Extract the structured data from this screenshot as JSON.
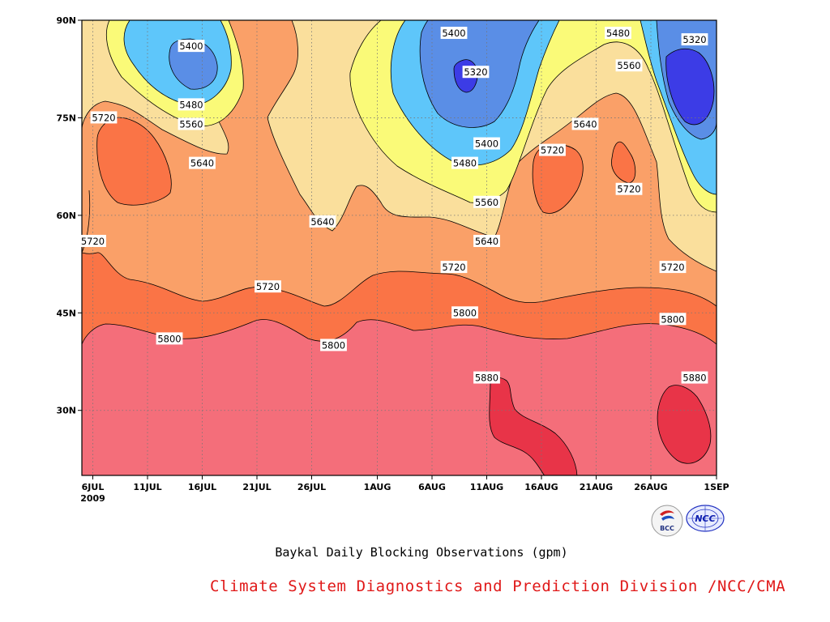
{
  "chart_data": {
    "type": "heatmap",
    "subtype": "filled-contour (time-latitude)",
    "title": "Baykal Daily Blocking Observations (gpm)",
    "xlabel": "",
    "ylabel": "",
    "x_ticks": [
      "6JUL",
      "11JUL",
      "16JUL",
      "21JUL",
      "26JUL",
      "1AUG",
      "6AUG",
      "11AUG",
      "16AUG",
      "21AUG",
      "26AUG",
      "1SEP"
    ],
    "x_year_label": "2009",
    "x_range": [
      "2009-07-05",
      "2009-09-01"
    ],
    "y_ticks": [
      "30N",
      "45N",
      "60N",
      "75N",
      "90N"
    ],
    "y_range_deg": [
      20,
      90
    ],
    "grid": "dotted",
    "contour_levels": [
      5320,
      5400,
      5480,
      5560,
      5640,
      5720,
      5800,
      5880
    ],
    "fill_colors": {
      "lt5320": "#3c3ce6",
      "5320-5400": "#5a8ee6",
      "5400-5480": "#5ec6fa",
      "5480-5560": "#fafa78",
      "5560-5640": "#fadf9c",
      "5640-5720": "#faa068",
      "5720-5800": "#fa7446",
      "5800-5880": "#f46e7a",
      "gt5880": "#e83448"
    },
    "contour_labels": [
      {
        "value": "5400",
        "date": "2009-07-15",
        "lat": 86
      },
      {
        "value": "5480",
        "date": "2009-07-15",
        "lat": 77
      },
      {
        "value": "5560",
        "date": "2009-07-15",
        "lat": 74
      },
      {
        "value": "5640",
        "date": "2009-07-16",
        "lat": 68
      },
      {
        "value": "5720",
        "date": "2009-07-07",
        "lat": 75
      },
      {
        "value": "5720",
        "date": "2009-07-06",
        "lat": 56
      },
      {
        "value": "5720",
        "date": "2009-07-22",
        "lat": 49
      },
      {
        "value": "5800",
        "date": "2009-07-13",
        "lat": 41
      },
      {
        "value": "5640",
        "date": "2009-07-27",
        "lat": 59
      },
      {
        "value": "5800",
        "date": "2009-07-28",
        "lat": 40
      },
      {
        "value": "5400",
        "date": "2009-08-08",
        "lat": 88
      },
      {
        "value": "5320",
        "date": "2009-08-10",
        "lat": 82
      },
      {
        "value": "5400",
        "date": "2009-08-11",
        "lat": 71
      },
      {
        "value": "5480",
        "date": "2009-08-09",
        "lat": 68
      },
      {
        "value": "5560",
        "date": "2009-08-11",
        "lat": 62
      },
      {
        "value": "5640",
        "date": "2009-08-11",
        "lat": 56
      },
      {
        "value": "5720",
        "date": "2009-08-08",
        "lat": 52
      },
      {
        "value": "5800",
        "date": "2009-08-09",
        "lat": 45
      },
      {
        "value": "5880",
        "date": "2009-08-11",
        "lat": 35
      },
      {
        "value": "5720",
        "date": "2009-08-17",
        "lat": 70
      },
      {
        "value": "5640",
        "date": "2009-08-20",
        "lat": 74
      },
      {
        "value": "5480",
        "date": "2009-08-23",
        "lat": 88
      },
      {
        "value": "5560",
        "date": "2009-08-24",
        "lat": 83
      },
      {
        "value": "5720",
        "date": "2009-08-24",
        "lat": 64
      },
      {
        "value": "5320",
        "date": "2009-08-30",
        "lat": 87
      },
      {
        "value": "5720",
        "date": "2009-08-28",
        "lat": 52
      },
      {
        "value": "5800",
        "date": "2009-08-28",
        "lat": 44
      },
      {
        "value": "5880",
        "date": "2009-08-30",
        "lat": 35
      }
    ]
  },
  "footer": {
    "credit": "Climate System Diagnostics and Prediction Division /NCC/CMA",
    "logo_left_text": "BCC",
    "logo_right_text": "NCC"
  }
}
